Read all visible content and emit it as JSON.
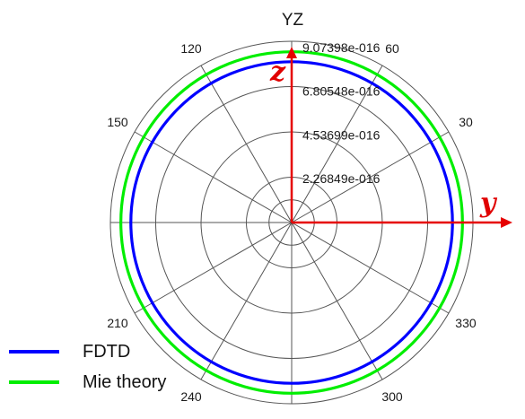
{
  "chart_data": {
    "type": "line",
    "subtype": "polar",
    "title": "YZ",
    "radial_ticks": [
      "2.26849e-016",
      "4.53699e-016",
      "6.80548e-016",
      "9.07398e-016"
    ],
    "radial_tick_values": [
      2.26849e-16,
      4.53699e-16,
      6.80548e-16,
      9.07398e-16
    ],
    "rlim": [
      0,
      9.07398e-16
    ],
    "angle_ticks": [
      {
        "angle": 30,
        "label": "30"
      },
      {
        "angle": 60,
        "label": "60"
      },
      {
        "angle": 120,
        "label": "120"
      },
      {
        "angle": 150,
        "label": "150"
      },
      {
        "angle": 210,
        "label": "210"
      },
      {
        "angle": 240,
        "label": "240"
      },
      {
        "angle": 300,
        "label": "300"
      },
      {
        "angle": 330,
        "label": "330"
      }
    ],
    "angle_ticks_shown_at": [
      0,
      30,
      60,
      90,
      120,
      150,
      180,
      210,
      240,
      270,
      300,
      330
    ],
    "grid": true,
    "axis_labels": {
      "horizontal": "y",
      "vertical": "z"
    },
    "series": [
      {
        "name": "FDTD",
        "color": "#0000ff",
        "value": 8.05e-16
      },
      {
        "name": "Mie theory",
        "color": "#00ee00",
        "value": 8.55e-16
      }
    ],
    "legend_position": "bottom-left"
  },
  "colors": {
    "grid": "#555555",
    "axis_arrows": "#e60000",
    "fdtd": "#0000ff",
    "mie": "#00ee00"
  }
}
